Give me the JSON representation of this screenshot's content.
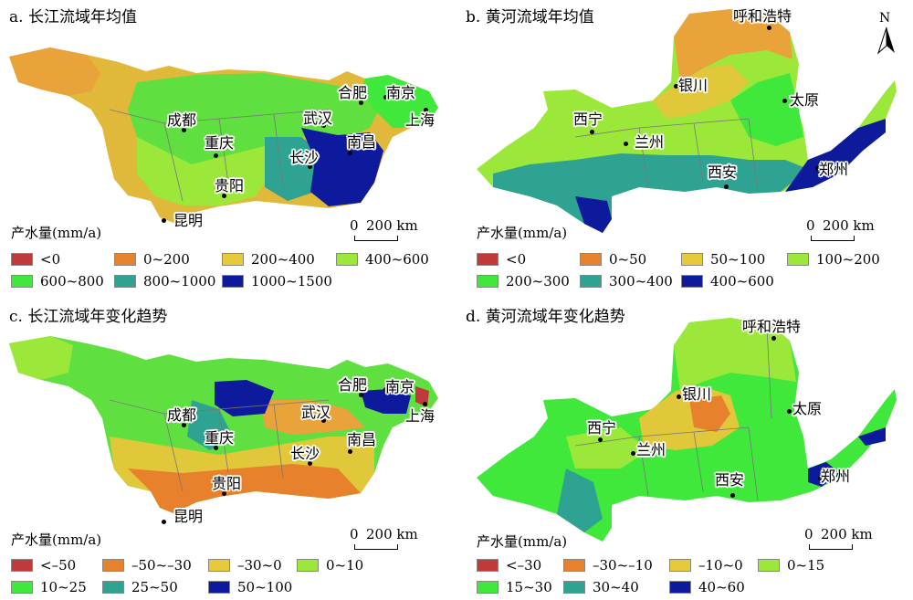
{
  "panels": {
    "a": {
      "title": "a. 长江流域年均值",
      "legend_title": "产水量(mm/a)",
      "legend": [
        {
          "label": "<0",
          "color": "#c0393b"
        },
        {
          "label": "0~200",
          "color": "#e8812b"
        },
        {
          "label": "200~400",
          "color": "#e8c93a"
        },
        {
          "label": "400~600",
          "color": "#9ce83a"
        },
        {
          "label": "600~800",
          "color": "#3fe83a"
        },
        {
          "label": "800~1000",
          "color": "#2fa391"
        },
        {
          "label": "1000~1500",
          "color": "#0d1a9c"
        }
      ],
      "cities": [
        "合肥",
        "南京",
        "武汉",
        "上海",
        "成都",
        "重庆",
        "长沙",
        "南昌",
        "贵阳",
        "昆明"
      ],
      "scale": {
        "zero": "0",
        "distance": "200 km"
      }
    },
    "b": {
      "title": "b. 黄河流域年均值",
      "legend_title": "产水量(mm/a)",
      "legend": [
        {
          "label": "<0",
          "color": "#c0393b"
        },
        {
          "label": "0~50",
          "color": "#e8812b"
        },
        {
          "label": "50~100",
          "color": "#e8c93a"
        },
        {
          "label": "100~200",
          "color": "#9ce83a"
        },
        {
          "label": "200~300",
          "color": "#3fe83a"
        },
        {
          "label": "300~400",
          "color": "#2fa391"
        },
        {
          "label": "400~600",
          "color": "#0d1a9c"
        }
      ],
      "cities": [
        "呼和浩特",
        "银川",
        "太原",
        "西宁",
        "兰州",
        "西安",
        "郑州"
      ],
      "scale": {
        "zero": "0",
        "distance": "200 km"
      },
      "north_label": "N"
    },
    "c": {
      "title": "c. 长江流域年变化趋势",
      "legend_title": "产水量(mm/a)",
      "legend": [
        {
          "label": "<–50",
          "color": "#c0393b"
        },
        {
          "label": "–50~–30",
          "color": "#e8812b"
        },
        {
          "label": "–30~0",
          "color": "#e8c93a"
        },
        {
          "label": "0~10",
          "color": "#9ce83a"
        },
        {
          "label": "10~25",
          "color": "#3fe83a"
        },
        {
          "label": "25~50",
          "color": "#2fa391"
        },
        {
          "label": "50~100",
          "color": "#0d1a9c"
        }
      ],
      "cities": [
        "合肥",
        "南京",
        "成都",
        "武汉",
        "上海",
        "重庆",
        "长沙",
        "南昌",
        "贵阳",
        "昆明"
      ],
      "scale": {
        "zero": "0",
        "distance": "200 km"
      }
    },
    "d": {
      "title": "d. 黄河流域年变化趋势",
      "legend_title": "产水量(mm/a)",
      "legend": [
        {
          "label": "<–30",
          "color": "#c0393b"
        },
        {
          "label": "–30~–10",
          "color": "#e8812b"
        },
        {
          "label": "–10~0",
          "color": "#e8c93a"
        },
        {
          "label": "0~15",
          "color": "#9ce83a"
        },
        {
          "label": "15~30",
          "color": "#3fe83a"
        },
        {
          "label": "30~40",
          "color": "#2fa391"
        },
        {
          "label": "40~60",
          "color": "#0d1a9c"
        }
      ],
      "cities": [
        "呼和浩特",
        "银川",
        "太原",
        "西宁",
        "兰州",
        "西安",
        "郑州"
      ],
      "scale": {
        "zero": "0",
        "distance": "200 km"
      }
    }
  }
}
